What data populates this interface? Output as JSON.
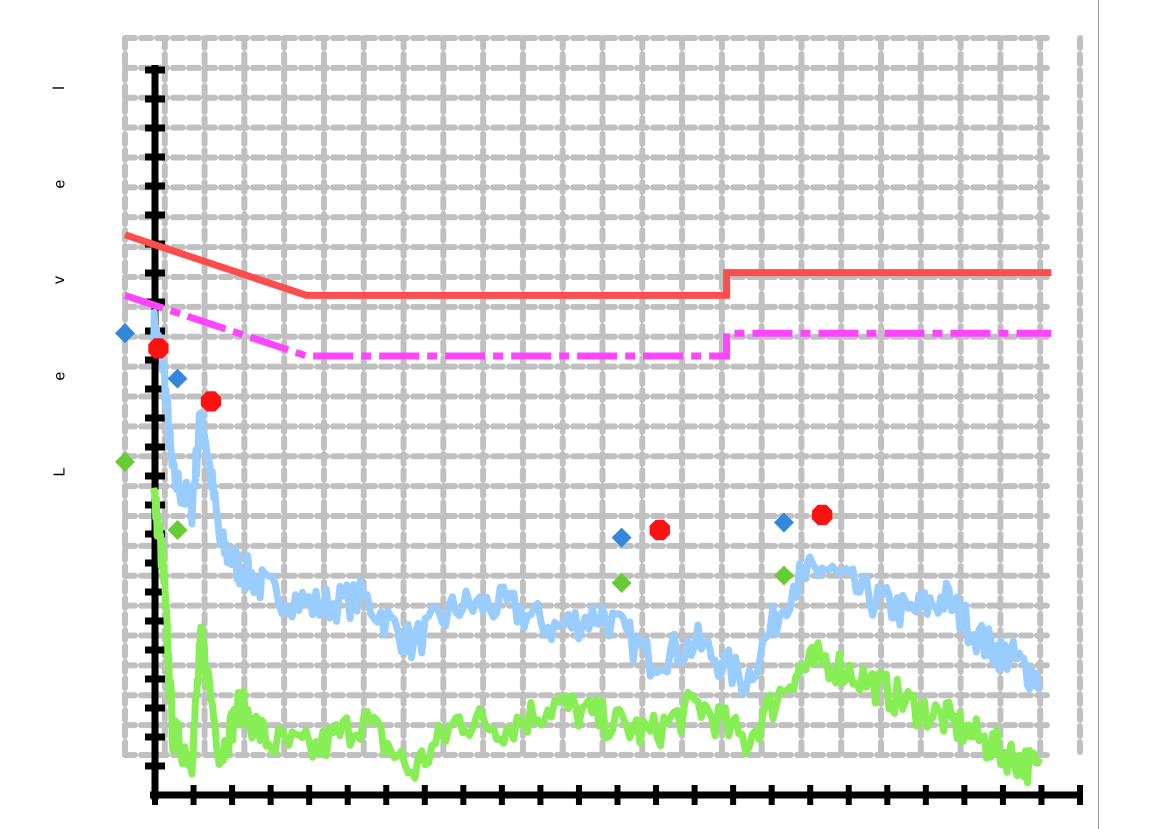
{
  "chart_data": {
    "type": "line",
    "title": "",
    "xlabel": "",
    "ylabel": "Level",
    "xlim": [
      0,
      1
    ],
    "ylim": [
      0,
      1
    ],
    "grid": true,
    "series": [
      {
        "style": "solid",
        "color": "#ff4d4d",
        "x": [
          0.0,
          0.19,
          0.63,
          0.63,
          0.97
        ],
        "y": [
          0.74,
          0.66,
          0.66,
          0.69,
          0.69
        ]
      },
      {
        "style": "dashdot",
        "color": "#ff44ff",
        "x": [
          0.0,
          0.19,
          0.63,
          0.63,
          0.97
        ],
        "y": [
          0.66,
          0.58,
          0.58,
          0.61,
          0.61
        ]
      },
      {
        "style": "noisy",
        "color": "#99ccff",
        "x": [
          0.03,
          0.04,
          0.05,
          0.07,
          0.08,
          0.1,
          0.12,
          0.15,
          0.2,
          0.25,
          0.3,
          0.35,
          0.4,
          0.45,
          0.5,
          0.55,
          0.6,
          0.65,
          0.7,
          0.73,
          0.78,
          0.82,
          0.86,
          0.9,
          0.93,
          0.96
        ],
        "y": [
          0.62,
          0.57,
          0.42,
          0.38,
          0.51,
          0.33,
          0.3,
          0.27,
          0.25,
          0.26,
          0.2,
          0.25,
          0.25,
          0.22,
          0.24,
          0.18,
          0.2,
          0.15,
          0.28,
          0.3,
          0.26,
          0.24,
          0.26,
          0.2,
          0.18,
          0.15
        ]
      },
      {
        "style": "noisy",
        "color": "#88ee55",
        "x": [
          0.03,
          0.04,
          0.05,
          0.07,
          0.08,
          0.1,
          0.12,
          0.15,
          0.2,
          0.25,
          0.3,
          0.35,
          0.4,
          0.45,
          0.5,
          0.55,
          0.6,
          0.65,
          0.7,
          0.73,
          0.78,
          0.82,
          0.86,
          0.9,
          0.93,
          0.96
        ],
        "y": [
          0.4,
          0.3,
          0.08,
          0.05,
          0.21,
          0.05,
          0.12,
          0.07,
          0.06,
          0.1,
          0.03,
          0.1,
          0.09,
          0.12,
          0.1,
          0.08,
          0.12,
          0.07,
          0.16,
          0.18,
          0.15,
          0.12,
          0.1,
          0.07,
          0.05,
          0.03
        ]
      }
    ],
    "markers": [
      {
        "shape": "octagon",
        "color": "#ff1111",
        "x": 0.035,
        "y": 0.59
      },
      {
        "shape": "octagon",
        "color": "#ff1111",
        "x": 0.09,
        "y": 0.52
      },
      {
        "shape": "octagon",
        "color": "#ff1111",
        "x": 0.56,
        "y": 0.35
      },
      {
        "shape": "octagon",
        "color": "#ff1111",
        "x": 0.73,
        "y": 0.37
      },
      {
        "shape": "diamond",
        "color": "#3388dd",
        "x": 0.0,
        "y": 0.61
      },
      {
        "shape": "diamond",
        "color": "#3388dd",
        "x": 0.055,
        "y": 0.55
      },
      {
        "shape": "diamond",
        "color": "#3388dd",
        "x": 0.52,
        "y": 0.34
      },
      {
        "shape": "diamond",
        "color": "#3388dd",
        "x": 0.69,
        "y": 0.36
      },
      {
        "shape": "diamond",
        "color": "#66cc33",
        "x": 0.0,
        "y": 0.44
      },
      {
        "shape": "diamond",
        "color": "#66cc33",
        "x": 0.055,
        "y": 0.35
      },
      {
        "shape": "diamond",
        "color": "#66cc33",
        "x": 0.52,
        "y": 0.28
      },
      {
        "shape": "diamond",
        "color": "#66cc33",
        "x": 0.69,
        "y": 0.29
      }
    ]
  }
}
